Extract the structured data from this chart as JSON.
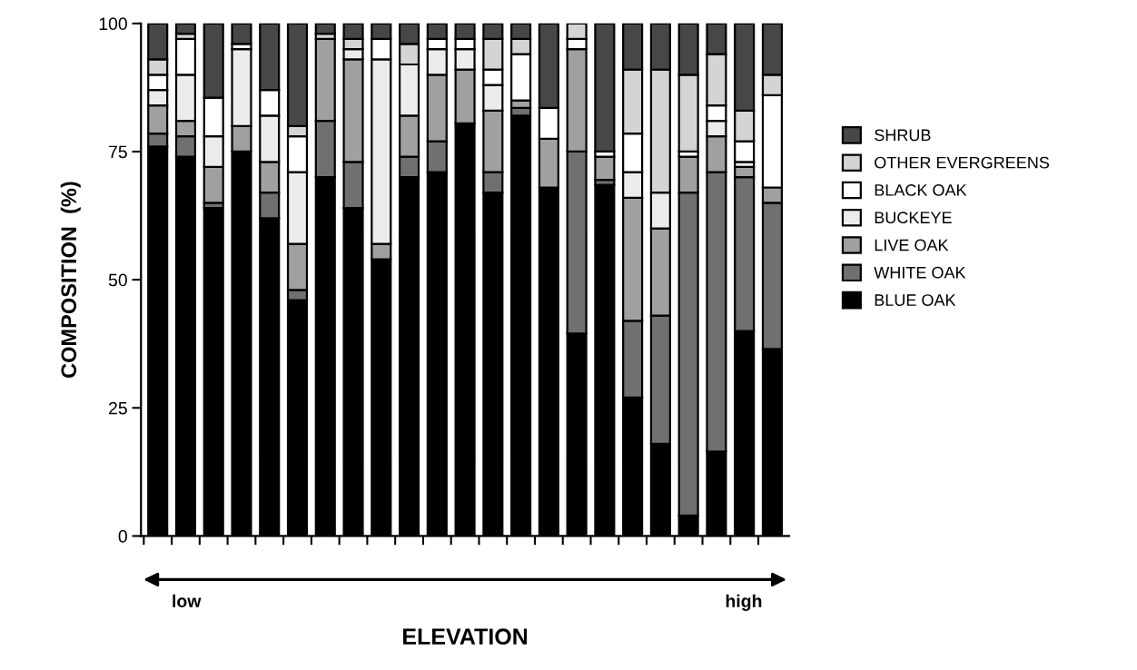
{
  "chart_data": {
    "type": "bar",
    "stacked": true,
    "xlabel": "ELEVATION",
    "ylabel": "COMPOSITION  (%)",
    "categories": [
      null,
      null,
      null,
      null,
      null,
      null,
      null,
      null,
      null,
      null,
      null,
      null,
      null,
      null,
      null,
      null,
      null,
      null,
      null,
      null,
      null,
      null,
      null
    ],
    "ylim": [
      0,
      100
    ],
    "yticks": [
      0,
      25,
      50,
      75,
      100
    ],
    "grid": false,
    "legend": "right",
    "annotations": [
      "low",
      "high"
    ],
    "series": [
      {
        "name": "BLUE OAK",
        "color": "#000000",
        "values": [
          76,
          74,
          64,
          75,
          62,
          46,
          70,
          64,
          54,
          70,
          71,
          80.5,
          67,
          82,
          68,
          39.5,
          68.5,
          27,
          18,
          4,
          16.5,
          40,
          36.5
        ]
      },
      {
        "name": "WHITE OAK",
        "color": "#707070",
        "values": [
          2.5,
          4,
          1,
          0,
          5,
          2,
          11,
          9,
          0,
          4,
          6,
          0,
          4,
          1.5,
          0,
          35.5,
          1,
          15,
          25,
          63,
          54.5,
          30,
          28.5
        ]
      },
      {
        "name": "LIVE OAK",
        "color": "#a0a0a0",
        "values": [
          5.5,
          3,
          7,
          5,
          6,
          9,
          16,
          20,
          3,
          8,
          13,
          10.5,
          12,
          1.5,
          9.5,
          20,
          4.5,
          24,
          17,
          7,
          7,
          2,
          3
        ]
      },
      {
        "name": "BUCKEYE",
        "color": "#ececec",
        "values": [
          3,
          9,
          6,
          15,
          9,
          14,
          0,
          2,
          36,
          10,
          5,
          4,
          5,
          0,
          0,
          0,
          0,
          5,
          7,
          0,
          3,
          1,
          0
        ]
      },
      {
        "name": "BLACK OAK",
        "color": "#ffffff",
        "values": [
          3,
          7,
          7.5,
          1,
          5,
          7,
          0,
          0,
          4,
          0,
          2,
          2,
          3,
          9,
          6,
          2,
          1,
          7.5,
          0,
          1,
          3,
          4,
          18
        ]
      },
      {
        "name": "OTHER EVERGREENS",
        "color": "#d4d4d4",
        "values": [
          3,
          1,
          0,
          0,
          0,
          2,
          1,
          2,
          0,
          4,
          0,
          0,
          6,
          3,
          0,
          3,
          0,
          12.5,
          24,
          15,
          10,
          6,
          4
        ]
      },
      {
        "name": "SHRUB",
        "color": "#474747",
        "values": [
          7,
          2,
          14.5,
          4,
          13,
          20,
          2,
          3,
          3,
          4,
          3,
          3,
          3,
          3,
          16.5,
          0,
          25,
          9,
          9,
          10,
          6,
          17,
          10
        ]
      }
    ]
  }
}
